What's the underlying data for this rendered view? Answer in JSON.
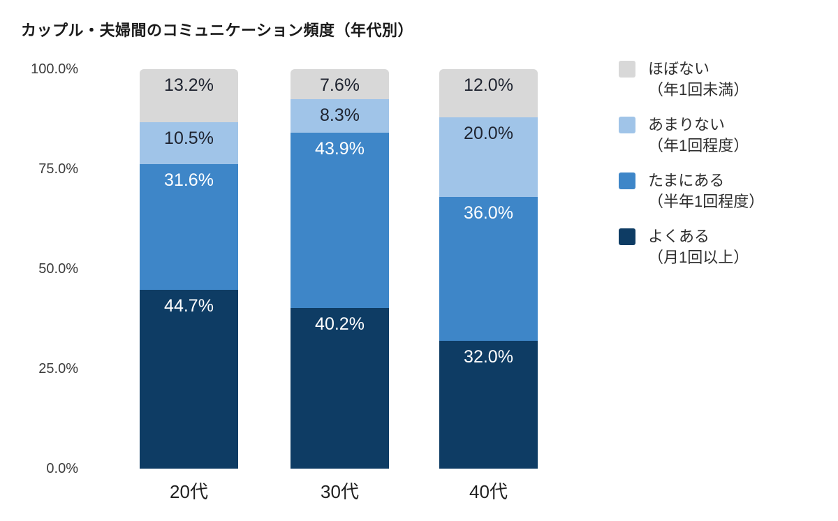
{
  "chart_data": {
    "type": "bar",
    "subtype": "stacked-vertical-100pct",
    "title": "カップル・夫婦間のコミュニケーション頻度（年代別）",
    "categories": [
      "20代",
      "30代",
      "40代"
    ],
    "series": [
      {
        "name": "ほぼない（年1回未満）",
        "color": "#d8d8d8",
        "label_color": "#1f2430",
        "values": [
          13.2,
          7.6,
          12.0
        ]
      },
      {
        "name": "あまりない（年1回程度）",
        "color": "#a0c4e8",
        "label_color": "#1f2430",
        "values": [
          10.5,
          8.3,
          20.0
        ]
      },
      {
        "name": "たまにある（半年1回程度）",
        "color": "#3e86c8",
        "label_color": "#ffffff",
        "values": [
          31.6,
          43.9,
          36.0
        ]
      },
      {
        "name": "よくある（月1回以上）",
        "color": "#0e3c64",
        "label_color": "#ffffff",
        "values": [
          44.7,
          40.2,
          32.0
        ]
      }
    ],
    "stack_order_bottom_to_top": [
      "よくある（月1回以上）",
      "たまにある（半年1回程度）",
      "あまりない（年1回程度）",
      "ほぼない（年1回未満）"
    ],
    "y_ticks": [
      "100.0%",
      "75.0%",
      "50.0%",
      "25.0%",
      "0.0%"
    ],
    "ylim": [
      0,
      100
    ],
    "grid": false,
    "legend_position": "right"
  },
  "legend": {
    "items": [
      {
        "line1": "ほぼない",
        "line2": "（年1回未満）",
        "color": "#d8d8d8"
      },
      {
        "line1": "あまりない",
        "line2": "（年1回程度）",
        "color": "#a0c4e8"
      },
      {
        "line1": "たまにある",
        "line2": "（半年1回程度）",
        "color": "#3e86c8"
      },
      {
        "line1": "よくある",
        "line2": "（月1回以上）",
        "color": "#0e3c64"
      }
    ]
  }
}
